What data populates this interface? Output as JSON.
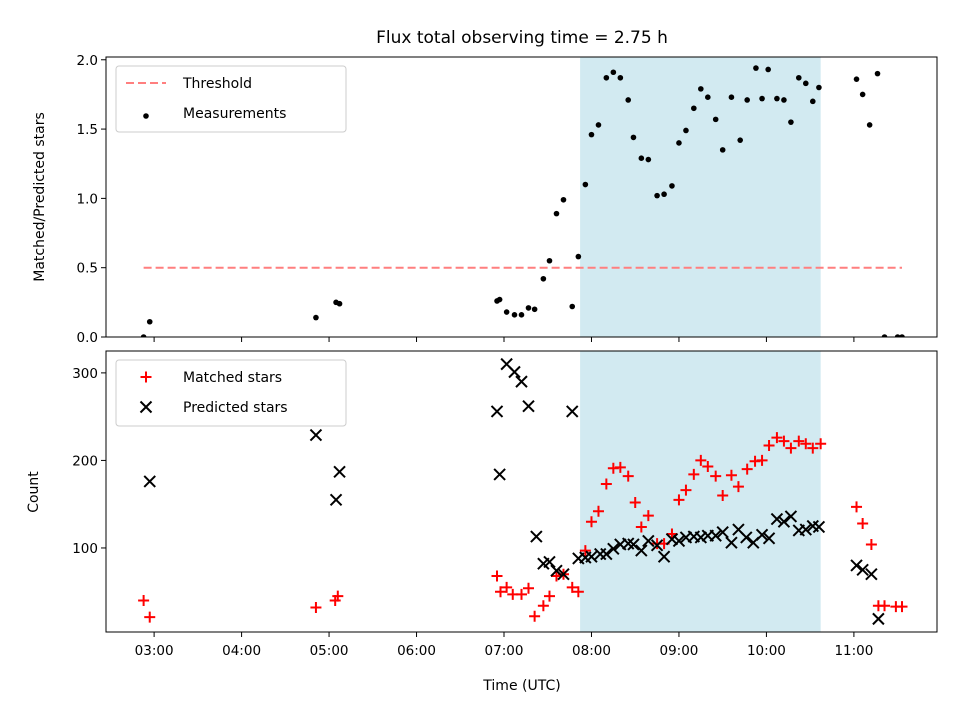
{
  "chart_data": {
    "title": "Flux total observing time = 2.75 h",
    "xlabel": "Time (UTC)",
    "x_ticks": [
      "03:00",
      "04:00",
      "05:00",
      "06:00",
      "07:00",
      "08:00",
      "09:00",
      "10:00",
      "11:00"
    ],
    "x_tick_hours": [
      3,
      4,
      5,
      6,
      7,
      8,
      9,
      10,
      11
    ],
    "xlim_hours": [
      2.45,
      11.95
    ],
    "shaded_span_hours": [
      7.87,
      10.62
    ],
    "colors": {
      "shade": "#add8e6",
      "threshold": "#ff7f7f",
      "matched": "#ff0000",
      "predicted": "#000000",
      "measurement": "#000000"
    },
    "panels": [
      {
        "type": "scatter",
        "ylabel": "Matched/Predicted stars",
        "ylim": [
          0,
          2.02
        ],
        "y_ticks": [
          "0.0",
          "0.5",
          "1.0",
          "1.5",
          "2.0"
        ],
        "y_tick_values": [
          0,
          0.5,
          1.0,
          1.5,
          2.0
        ],
        "legend_location": "upper left",
        "threshold": {
          "name": "Threshold",
          "y": 0.5,
          "x_range": [
            2.88,
            11.55
          ]
        },
        "series": [
          {
            "name": "Measurements",
            "marker": "dot",
            "points": [
              [
                2.88,
                0.0
              ],
              [
                2.95,
                0.11
              ],
              [
                4.85,
                0.14
              ],
              [
                5.08,
                0.25
              ],
              [
                5.12,
                0.24
              ],
              [
                6.92,
                0.26
              ],
              [
                6.95,
                0.27
              ],
              [
                7.03,
                0.18
              ],
              [
                7.12,
                0.16
              ],
              [
                7.2,
                0.16
              ],
              [
                7.28,
                0.21
              ],
              [
                7.35,
                0.2
              ],
              [
                7.45,
                0.42
              ],
              [
                7.52,
                0.55
              ],
              [
                7.6,
                0.89
              ],
              [
                7.68,
                0.99
              ],
              [
                7.78,
                0.22
              ],
              [
                7.85,
                0.58
              ],
              [
                7.93,
                1.1
              ],
              [
                8.0,
                1.46
              ],
              [
                8.08,
                1.53
              ],
              [
                8.17,
                1.87
              ],
              [
                8.25,
                1.91
              ],
              [
                8.33,
                1.87
              ],
              [
                8.42,
                1.71
              ],
              [
                8.48,
                1.44
              ],
              [
                8.57,
                1.29
              ],
              [
                8.65,
                1.28
              ],
              [
                8.75,
                1.02
              ],
              [
                8.83,
                1.03
              ],
              [
                8.92,
                1.09
              ],
              [
                9.0,
                1.4
              ],
              [
                9.08,
                1.49
              ],
              [
                9.17,
                1.65
              ],
              [
                9.25,
                1.79
              ],
              [
                9.33,
                1.73
              ],
              [
                9.42,
                1.57
              ],
              [
                9.5,
                1.35
              ],
              [
                9.6,
                1.73
              ],
              [
                9.7,
                1.42
              ],
              [
                9.78,
                1.71
              ],
              [
                9.88,
                1.94
              ],
              [
                9.95,
                1.72
              ],
              [
                10.02,
                1.93
              ],
              [
                10.12,
                1.72
              ],
              [
                10.2,
                1.71
              ],
              [
                10.28,
                1.55
              ],
              [
                10.37,
                1.87
              ],
              [
                10.45,
                1.83
              ],
              [
                10.53,
                1.7
              ],
              [
                10.6,
                1.8
              ],
              [
                11.03,
                1.86
              ],
              [
                11.1,
                1.75
              ],
              [
                11.18,
                1.53
              ],
              [
                11.27,
                1.9
              ],
              [
                11.35,
                0.0
              ],
              [
                11.5,
                0.0
              ],
              [
                11.55,
                0.0
              ]
            ]
          }
        ]
      },
      {
        "type": "scatter",
        "xlabel": "Time (UTC)",
        "ylabel": "Count",
        "ylim": [
          4,
          325
        ],
        "y_ticks": [
          "100",
          "200",
          "300"
        ],
        "y_tick_values": [
          100,
          200,
          300
        ],
        "legend_location": "upper left",
        "series": [
          {
            "name": "Matched stars",
            "marker": "plus",
            "points": [
              [
                2.88,
                40
              ],
              [
                2.95,
                21
              ],
              [
                4.85,
                32
              ],
              [
                5.07,
                40
              ],
              [
                5.1,
                45
              ],
              [
                6.92,
                68
              ],
              [
                6.96,
                50
              ],
              [
                7.03,
                55
              ],
              [
                7.1,
                47
              ],
              [
                7.2,
                47
              ],
              [
                7.28,
                54
              ],
              [
                7.35,
                22
              ],
              [
                7.45,
                34
              ],
              [
                7.52,
                45
              ],
              [
                7.6,
                68
              ],
              [
                7.68,
                70
              ],
              [
                7.78,
                55
              ],
              [
                7.85,
                50
              ],
              [
                7.93,
                97
              ],
              [
                8.0,
                130
              ],
              [
                8.08,
                142
              ],
              [
                8.17,
                173
              ],
              [
                8.25,
                191
              ],
              [
                8.33,
                192
              ],
              [
                8.42,
                182
              ],
              [
                8.5,
                152
              ],
              [
                8.57,
                124
              ],
              [
                8.65,
                137
              ],
              [
                8.75,
                105
              ],
              [
                8.83,
                105
              ],
              [
                8.92,
                116
              ],
              [
                9.0,
                155
              ],
              [
                9.08,
                166
              ],
              [
                9.17,
                184
              ],
              [
                9.25,
                200
              ],
              [
                9.33,
                193
              ],
              [
                9.42,
                182
              ],
              [
                9.5,
                160
              ],
              [
                9.6,
                183
              ],
              [
                9.68,
                170
              ],
              [
                9.78,
                190
              ],
              [
                9.87,
                199
              ],
              [
                9.95,
                200
              ],
              [
                10.03,
                217
              ],
              [
                10.12,
                226
              ],
              [
                10.2,
                222
              ],
              [
                10.28,
                214
              ],
              [
                10.37,
                222
              ],
              [
                10.45,
                219
              ],
              [
                10.53,
                214
              ],
              [
                10.62,
                219
              ],
              [
                11.03,
                147
              ],
              [
                11.1,
                128
              ],
              [
                11.2,
                104
              ],
              [
                11.28,
                34
              ],
              [
                11.35,
                34
              ],
              [
                11.48,
                33
              ],
              [
                11.55,
                33
              ]
            ]
          },
          {
            "name": "Predicted stars",
            "marker": "x",
            "points": [
              [
                2.95,
                176
              ],
              [
                4.85,
                229
              ],
              [
                5.08,
                155
              ],
              [
                5.12,
                187
              ],
              [
                6.92,
                256
              ],
              [
                6.95,
                184
              ],
              [
                7.03,
                310
              ],
              [
                7.12,
                301
              ],
              [
                7.2,
                290
              ],
              [
                7.28,
                262
              ],
              [
                7.37,
                113
              ],
              [
                7.45,
                82
              ],
              [
                7.52,
                84
              ],
              [
                7.6,
                74
              ],
              [
                7.68,
                70
              ],
              [
                7.78,
                256
              ],
              [
                7.85,
                88
              ],
              [
                7.93,
                89
              ],
              [
                8.0,
                90
              ],
              [
                8.1,
                93
              ],
              [
                8.17,
                93
              ],
              [
                8.25,
                99
              ],
              [
                8.33,
                104
              ],
              [
                8.42,
                105
              ],
              [
                8.48,
                104
              ],
              [
                8.57,
                97
              ],
              [
                8.65,
                108
              ],
              [
                8.75,
                103
              ],
              [
                8.83,
                90
              ],
              [
                8.92,
                110
              ],
              [
                9.0,
                108
              ],
              [
                9.08,
                112
              ],
              [
                9.17,
                113
              ],
              [
                9.25,
                112
              ],
              [
                9.33,
                114
              ],
              [
                9.42,
                114
              ],
              [
                9.5,
                118
              ],
              [
                9.6,
                106
              ],
              [
                9.68,
                121
              ],
              [
                9.77,
                112
              ],
              [
                9.85,
                106
              ],
              [
                9.95,
                115
              ],
              [
                10.03,
                111
              ],
              [
                10.12,
                133
              ],
              [
                10.2,
                130
              ],
              [
                10.28,
                136
              ],
              [
                10.37,
                120
              ],
              [
                10.45,
                121
              ],
              [
                10.53,
                125
              ],
              [
                10.6,
                124
              ],
              [
                11.03,
                80
              ],
              [
                11.1,
                75
              ],
              [
                11.2,
                70
              ],
              [
                11.28,
                19
              ]
            ]
          }
        ]
      }
    ]
  }
}
